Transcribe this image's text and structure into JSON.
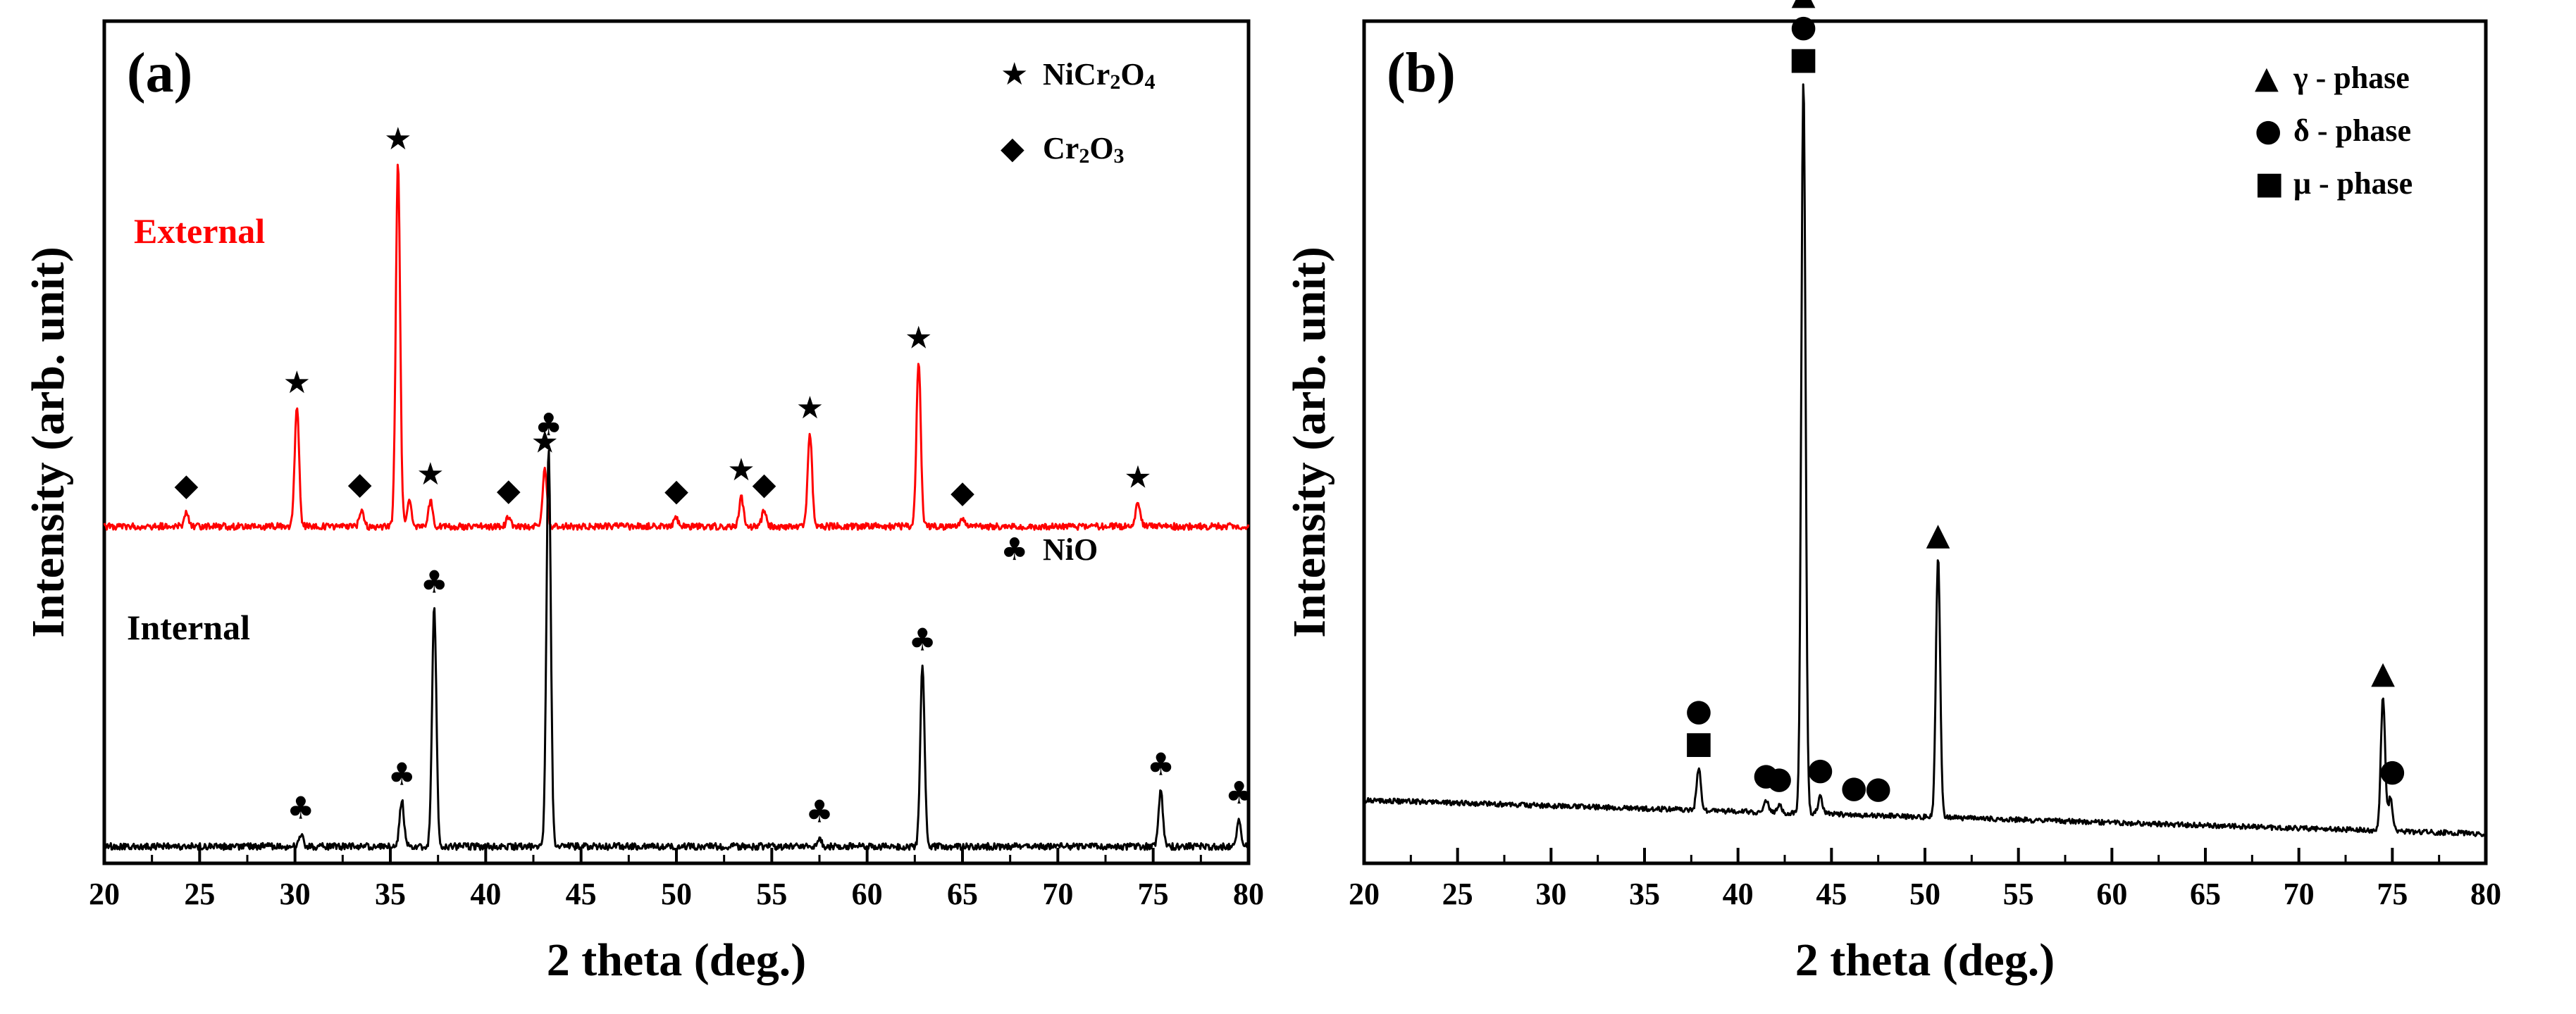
{
  "chart_data": [
    {
      "panel_label": "(a)",
      "type": "line",
      "xlabel": "2 theta (deg.)",
      "ylabel": "Intensity (arb. unit)",
      "xlim": [
        20,
        80
      ],
      "xticks": [
        "20",
        "25",
        "30",
        "35",
        "40",
        "45",
        "50",
        "55",
        "60",
        "65",
        "70",
        "75",
        "80"
      ],
      "legend": [
        {
          "symbol": "★",
          "name": "star",
          "label_base": "NiCr",
          "sub1": "2",
          "mid": "O",
          "sub2": "4"
        },
        {
          "symbol": "◆",
          "name": "diamond",
          "label_base": "Cr",
          "sub1": "2",
          "mid": "O",
          "sub2": "3"
        },
        {
          "symbol": "♣",
          "name": "club",
          "label": "NiO"
        }
      ],
      "series": [
        {
          "name": "External",
          "color": "#ff0000",
          "peaks": [
            {
              "x": 24.3,
              "h": 0.015
            },
            {
              "x": 30.1,
              "h": 0.145
            },
            {
              "x": 33.5,
              "h": 0.02
            },
            {
              "x": 35.4,
              "h": 0.43
            },
            {
              "x": 36.0,
              "h": 0.03
            },
            {
              "x": 37.1,
              "h": 0.03
            },
            {
              "x": 41.2,
              "h": 0.012
            },
            {
              "x": 43.1,
              "h": 0.07
            },
            {
              "x": 50.0,
              "h": 0.01
            },
            {
              "x": 53.4,
              "h": 0.035
            },
            {
              "x": 54.6,
              "h": 0.02
            },
            {
              "x": 57.0,
              "h": 0.11
            },
            {
              "x": 62.7,
              "h": 0.195
            },
            {
              "x": 65.0,
              "h": 0.01
            },
            {
              "x": 74.2,
              "h": 0.03
            }
          ],
          "markers": [
            {
              "x": 24.3,
              "symbol": "◆"
            },
            {
              "x": 30.1,
              "symbol": "★"
            },
            {
              "x": 33.4,
              "symbol": "◆"
            },
            {
              "x": 35.4,
              "symbol": "★"
            },
            {
              "x": 37.1,
              "symbol": "★"
            },
            {
              "x": 41.2,
              "symbol": "◆"
            },
            {
              "x": 43.1,
              "symbol": "★"
            },
            {
              "x": 50.0,
              "symbol": "◆"
            },
            {
              "x": 53.4,
              "symbol": "★"
            },
            {
              "x": 54.6,
              "symbol": "◆"
            },
            {
              "x": 57.0,
              "symbol": "★"
            },
            {
              "x": 62.7,
              "symbol": "★"
            },
            {
              "x": 65.0,
              "symbol": "◆"
            },
            {
              "x": 74.2,
              "symbol": "★"
            }
          ]
        },
        {
          "name": "Internal",
          "color": "#000000",
          "peaks": [
            {
              "x": 30.3,
              "h": 0.015
            },
            {
              "x": 35.6,
              "h": 0.055
            },
            {
              "x": 37.3,
              "h": 0.285
            },
            {
              "x": 43.3,
              "h": 0.47
            },
            {
              "x": 57.5,
              "h": 0.01
            },
            {
              "x": 62.9,
              "h": 0.215
            },
            {
              "x": 75.4,
              "h": 0.065
            },
            {
              "x": 79.5,
              "h": 0.03
            }
          ],
          "markers": [
            {
              "x": 30.3,
              "symbol": "♣"
            },
            {
              "x": 35.6,
              "symbol": "♣"
            },
            {
              "x": 37.3,
              "symbol": "♣"
            },
            {
              "x": 43.3,
              "symbol": "♣"
            },
            {
              "x": 57.5,
              "symbol": "♣"
            },
            {
              "x": 62.9,
              "symbol": "♣"
            },
            {
              "x": 75.4,
              "symbol": "♣"
            },
            {
              "x": 79.5,
              "symbol": "♣"
            }
          ]
        }
      ]
    },
    {
      "panel_label": "(b)",
      "type": "line",
      "xlabel": "2 theta (deg.)",
      "ylabel": "Intensity (arb. unit)",
      "xlim": [
        20,
        80
      ],
      "xticks": [
        "20",
        "25",
        "30",
        "35",
        "40",
        "45",
        "50",
        "55",
        "60",
        "65",
        "70",
        "75",
        "80"
      ],
      "legend": [
        {
          "symbol": "▲",
          "name": "triangle",
          "label": "γ - phase"
        },
        {
          "symbol": "●",
          "name": "circle",
          "label": "δ - phase"
        },
        {
          "symbol": "■",
          "name": "square",
          "label": "μ - phase"
        }
      ],
      "series": [
        {
          "name": "",
          "color": "#000000",
          "peaks": [
            {
              "x": 37.9,
              "h": 0.05
            },
            {
              "x": 41.5,
              "h": 0.015
            },
            {
              "x": 42.2,
              "h": 0.01
            },
            {
              "x": 43.5,
              "h": 0.87
            },
            {
              "x": 44.4,
              "h": 0.02
            },
            {
              "x": 50.7,
              "h": 0.31
            },
            {
              "x": 74.5,
              "h": 0.16
            },
            {
              "x": 74.9,
              "h": 0.04
            }
          ],
          "markers": [
            {
              "x": 37.9,
              "symbol": "■●"
            },
            {
              "x": 41.5,
              "symbol": "●"
            },
            {
              "x": 42.2,
              "symbol": "●"
            },
            {
              "x": 43.5,
              "symbol": "■●▲"
            },
            {
              "x": 44.4,
              "symbol": "●"
            },
            {
              "x": 46.2,
              "symbol": "●"
            },
            {
              "x": 47.5,
              "symbol": "●"
            },
            {
              "x": 50.7,
              "symbol": "▲"
            },
            {
              "x": 74.5,
              "symbol": "▲"
            },
            {
              "x": 75.0,
              "symbol": "●"
            }
          ]
        }
      ]
    }
  ]
}
